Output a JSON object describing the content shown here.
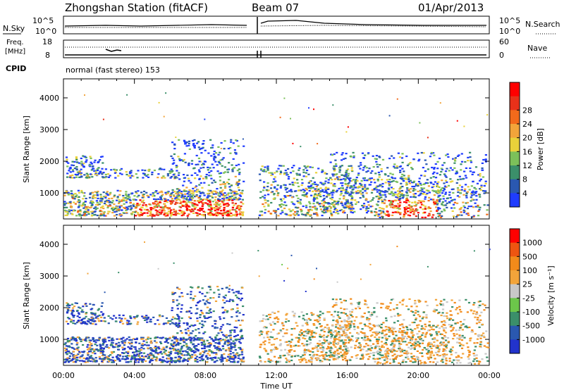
{
  "header": {
    "station": "Zhongshan Station (fitACF)",
    "beam": "Beam 07",
    "date": "01/Apr/2013"
  },
  "summary": {
    "nsky_label": "N.Sky",
    "nsearch_label": "N.Search",
    "freq_label_1": "Freq.",
    "freq_label_2": "[MHz]",
    "nave_label": "Nave",
    "cpid_label": "CPID",
    "cpid_text": "normal (fast stereo) 153",
    "left_ticks_top": [
      "10^5",
      "10^0"
    ],
    "left_ticks_freq": [
      "18",
      "8"
    ],
    "right_ticks_top": [
      "10^5",
      "10^0"
    ],
    "right_ticks_nave": [
      "60",
      "0"
    ]
  },
  "chart_data": [
    {
      "type": "heatmap",
      "title": "",
      "xlabel": "",
      "ylabel": "Slant Range [km]",
      "x_ticks": [
        "00:00",
        "04:00",
        "08:00",
        "12:00",
        "16:00",
        "20:00",
        "00:00"
      ],
      "y_ticks": [
        1000,
        2000,
        3000,
        4000
      ],
      "ylim": [
        180,
        4600
      ],
      "xlim_hours": [
        0,
        24
      ],
      "data_gap_hours": [
        10.2,
        10.9
      ],
      "colorbar": {
        "label": "Power [dB]",
        "ticks": [
          4,
          8,
          12,
          16,
          20,
          24,
          28
        ],
        "colors": [
          "#1f3cff",
          "#2a58b0",
          "#3b8f6a",
          "#7cc05a",
          "#e9d13a",
          "#f2a43a",
          "#f26a1b",
          "#e8311a",
          "#ff0000"
        ]
      }
    },
    {
      "type": "heatmap",
      "title": "",
      "xlabel": "Time UT",
      "ylabel": "Slant Range [km]",
      "x_ticks": [
        "00:00",
        "04:00",
        "08:00",
        "12:00",
        "16:00",
        "20:00",
        "00:00"
      ],
      "y_ticks": [
        1000,
        2000,
        3000,
        4000
      ],
      "ylim": [
        180,
        4600
      ],
      "xlim_hours": [
        0,
        24
      ],
      "data_gap_hours": [
        10.2,
        10.9
      ],
      "colorbar": {
        "label": "Velocity [m s⁻¹]",
        "ticks": [
          1000,
          500,
          100,
          25,
          -25,
          -100,
          -500,
          -1000
        ],
        "colors": [
          "#2233cc",
          "#2a58b0",
          "#3b8f6a",
          "#6cc64a",
          "#c8c8c8",
          "#f2a43a",
          "#f28a1a",
          "#ee5511",
          "#ff0000"
        ]
      }
    }
  ]
}
